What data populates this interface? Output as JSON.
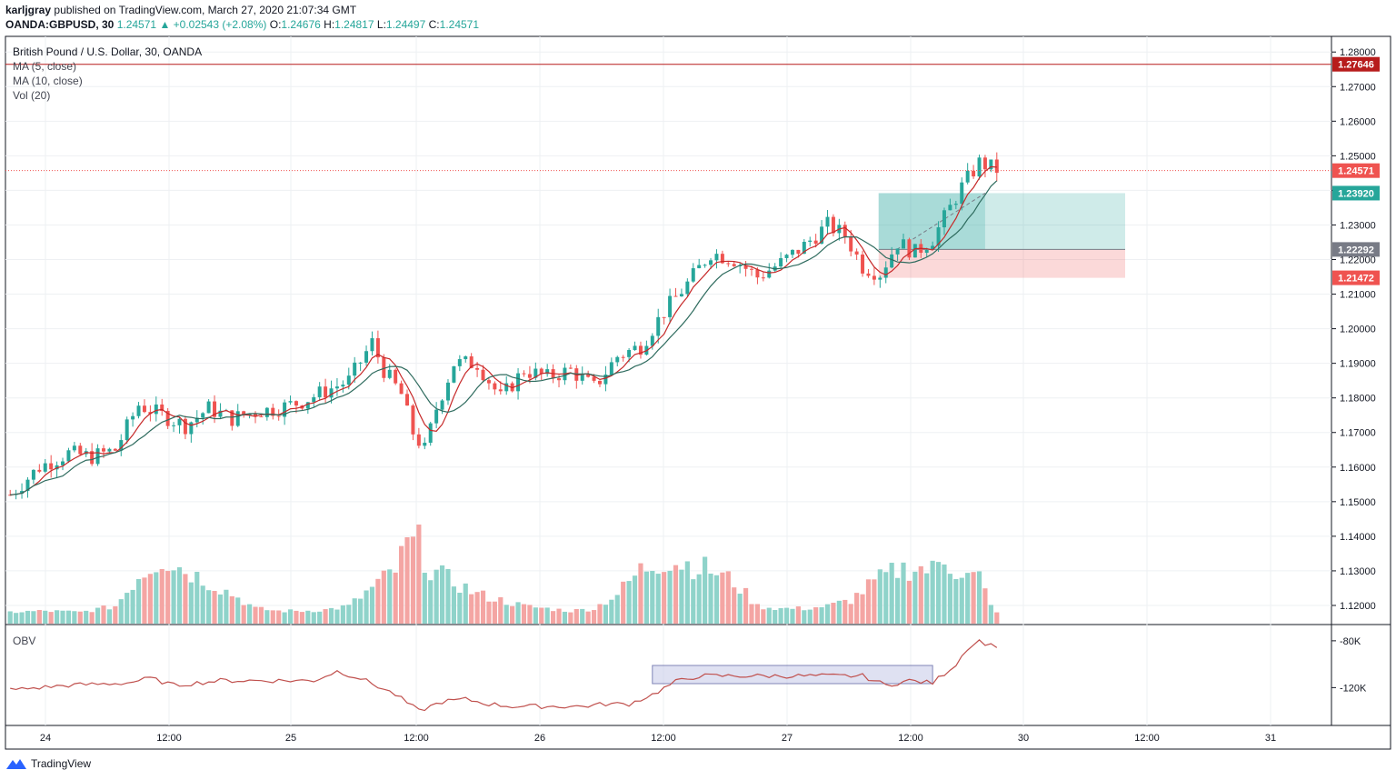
{
  "header": {
    "author": "karljgray",
    "published_text": "published on TradingView.com, March 27, 2020 21:07:34 GMT",
    "symbol": "OANDA:GBPUSD, 30",
    "last": "1.24571",
    "change": "▲ +0.02543 (+2.08%)",
    "o_label": "O:",
    "o": "1.24676",
    "h_label": "H:",
    "h": "1.24817",
    "l_label": "L:",
    "l": "1.24497",
    "c_label": "C:",
    "c": "1.24571"
  },
  "legend": {
    "title": "British Pound / U.S. Dollar, 30, OANDA",
    "ma5": "MA (5, close)",
    "ma10": "MA (10, close)",
    "vol": "Vol (20)",
    "obv": "OBV"
  },
  "footer": {
    "brand": "TradingView"
  },
  "colors": {
    "up": "#26a69a",
    "down": "#ef5350",
    "ma5": "#c62828",
    "ma10": "#2e6b5e",
    "obv": "#c0504d",
    "grid": "#eef0f3",
    "resistance": "#b71c1c"
  },
  "chart_data": {
    "type": "candlestick",
    "price_axis": {
      "ylim": [
        1.115,
        1.284
      ],
      "ticks": [
        "1.28000",
        "1.27000",
        "1.26000",
        "1.25000",
        "1.24000",
        "1.23000",
        "1.22000",
        "1.21000",
        "1.20000",
        "1.19000",
        "1.18000",
        "1.17000",
        "1.16000",
        "1.15000",
        "1.14000",
        "1.13000",
        "1.12000"
      ]
    },
    "price_labels": [
      {
        "value": 1.27646,
        "text": "1.27646",
        "color": "#b71c1c"
      },
      {
        "value": 1.24571,
        "text": "1.24571",
        "color": "#ef5350"
      },
      {
        "value": 1.2392,
        "text": "1.23920",
        "color": "#26a69a"
      },
      {
        "value": 1.22292,
        "text": "1.22292",
        "color": "#787b86"
      },
      {
        "value": 1.21472,
        "text": "1.21472",
        "color": "#ef5350"
      }
    ],
    "time_axis": {
      "ticks": [
        "24",
        "12:00",
        "25",
        "12:00",
        "26",
        "12:00",
        "27",
        "12:00",
        "30",
        "12:00",
        "31"
      ]
    },
    "close_path": [
      [
        0,
        1.152
      ],
      [
        5,
        1.16
      ],
      [
        10,
        1.164
      ],
      [
        14,
        1.163
      ],
      [
        18,
        1.165
      ],
      [
        22,
        1.178
      ],
      [
        26,
        1.175
      ],
      [
        30,
        1.172
      ],
      [
        34,
        1.177
      ],
      [
        38,
        1.174
      ],
      [
        42,
        1.176
      ],
      [
        46,
        1.177
      ],
      [
        50,
        1.179
      ],
      [
        54,
        1.182
      ],
      [
        58,
        1.185
      ],
      [
        62,
        1.196
      ],
      [
        64,
        1.188
      ],
      [
        67,
        1.181
      ],
      [
        69,
        1.17
      ],
      [
        71,
        1.165
      ],
      [
        73,
        1.177
      ],
      [
        76,
        1.19
      ],
      [
        80,
        1.19
      ],
      [
        84,
        1.18
      ],
      [
        88,
        1.188
      ],
      [
        92,
        1.186
      ],
      [
        96,
        1.188
      ],
      [
        100,
        1.183
      ],
      [
        104,
        1.192
      ],
      [
        108,
        1.195
      ],
      [
        112,
        1.205
      ],
      [
        116,
        1.213
      ],
      [
        120,
        1.222
      ],
      [
        124,
        1.22
      ],
      [
        128,
        1.215
      ],
      [
        132,
        1.219
      ],
      [
        136,
        1.224
      ],
      [
        140,
        1.23
      ],
      [
        143,
        1.227
      ],
      [
        146,
        1.218
      ],
      [
        149,
        1.216
      ],
      [
        152,
        1.225
      ],
      [
        155,
        1.222
      ],
      [
        158,
        1.226
      ],
      [
        160,
        1.232
      ],
      [
        163,
        1.241
      ],
      [
        166,
        1.248
      ],
      [
        169,
        1.246
      ]
    ],
    "trade_box": {
      "entry": 1.22292,
      "target": 1.2392,
      "stop": 1.21472
    },
    "resistance": 1.27646,
    "volume_profile": [
      [
        0,
        5
      ],
      [
        6,
        6
      ],
      [
        12,
        5
      ],
      [
        18,
        10
      ],
      [
        22,
        35
      ],
      [
        26,
        50
      ],
      [
        30,
        40
      ],
      [
        34,
        30
      ],
      [
        38,
        20
      ],
      [
        42,
        8
      ],
      [
        46,
        6
      ],
      [
        50,
        6
      ],
      [
        54,
        7
      ],
      [
        58,
        10
      ],
      [
        62,
        25
      ],
      [
        66,
        40
      ],
      [
        68,
        60
      ],
      [
        70,
        62
      ],
      [
        72,
        40
      ],
      [
        76,
        30
      ],
      [
        80,
        20
      ],
      [
        84,
        15
      ],
      [
        88,
        10
      ],
      [
        92,
        8
      ],
      [
        96,
        6
      ],
      [
        100,
        8
      ],
      [
        104,
        20
      ],
      [
        108,
        40
      ],
      [
        112,
        48
      ],
      [
        116,
        45
      ],
      [
        120,
        40
      ],
      [
        124,
        30
      ],
      [
        128,
        10
      ],
      [
        132,
        8
      ],
      [
        136,
        8
      ],
      [
        140,
        10
      ],
      [
        144,
        15
      ],
      [
        148,
        30
      ],
      [
        152,
        40
      ],
      [
        155,
        42
      ],
      [
        158,
        40
      ],
      [
        160,
        50
      ],
      [
        162,
        40
      ],
      [
        164,
        35
      ],
      [
        166,
        34
      ],
      [
        168,
        10
      ],
      [
        169,
        6
      ]
    ],
    "obv": {
      "yticks": [
        "-80K",
        "-120K"
      ],
      "ylim": [
        -150,
        -70
      ],
      "path": [
        [
          0,
          -122
        ],
        [
          10,
          -118
        ],
        [
          20,
          -116
        ],
        [
          24,
          -112
        ],
        [
          28,
          -118
        ],
        [
          32,
          -116
        ],
        [
          36,
          -114
        ],
        [
          40,
          -114
        ],
        [
          44,
          -114
        ],
        [
          48,
          -114
        ],
        [
          52,
          -114
        ],
        [
          56,
          -106
        ],
        [
          60,
          -112
        ],
        [
          66,
          -126
        ],
        [
          70,
          -140
        ],
        [
          74,
          -132
        ],
        [
          78,
          -130
        ],
        [
          82,
          -134
        ],
        [
          86,
          -136
        ],
        [
          90,
          -136
        ],
        [
          94,
          -136
        ],
        [
          98,
          -136
        ],
        [
          102,
          -134
        ],
        [
          106,
          -134
        ],
        [
          110,
          -126
        ],
        [
          114,
          -115
        ],
        [
          118,
          -110
        ],
        [
          122,
          -110
        ],
        [
          126,
          -110
        ],
        [
          130,
          -110
        ],
        [
          134,
          -110
        ],
        [
          138,
          -110
        ],
        [
          142,
          -110
        ],
        [
          146,
          -110
        ],
        [
          150,
          -118
        ],
        [
          154,
          -114
        ],
        [
          158,
          -116
        ],
        [
          162,
          -100
        ],
        [
          164,
          -86
        ],
        [
          166,
          -80
        ],
        [
          168,
          -84
        ],
        [
          169,
          -84
        ]
      ],
      "highlight_box": [
        110,
        158
      ]
    }
  }
}
